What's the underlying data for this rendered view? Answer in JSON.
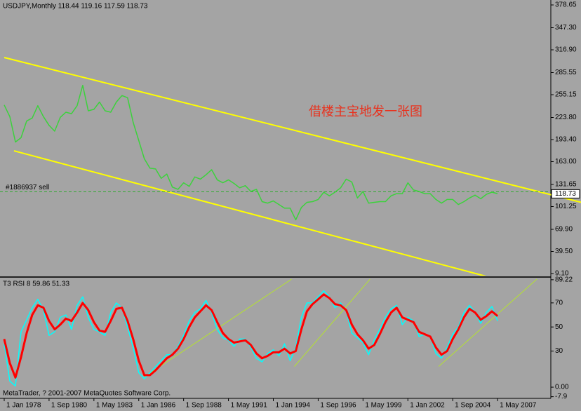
{
  "chart_data": [
    {
      "type": "line",
      "title": "USDJPY,Monthly  118.44 119.16 117.59 118.73",
      "annotation": "借楼主宝地发一张图",
      "order_label": "#1886937 sell",
      "order_price": 121.5,
      "current_price": 118.73,
      "color": "#3cd23c",
      "xlim": [
        "1977-11",
        "2010-07"
      ],
      "ylim": [
        6.2,
        383.5
      ],
      "yticks": [
        378.65,
        {
          "value": 347.3,
          "label": "347.30"
        },
        {
          "value": 316.9,
          "label": "316.90"
        },
        285.55,
        255.15,
        {
          "value": 223.8,
          "label": "223.80"
        },
        {
          "value": 193.4,
          "label": "193.40"
        },
        {
          "value": 163.0,
          "label": "163.00"
        },
        131.65,
        101.25,
        {
          "value": 69.9,
          "label": "69.90"
        },
        {
          "value": 39.5,
          "label": "39.50"
        },
        {
          "value": 9.1,
          "label": "9.10"
        }
      ],
      "x": [
        "1978-01",
        "1978-05",
        "1978-09",
        "1979-01",
        "1979-05",
        "1979-09",
        "1980-01",
        "1980-05",
        "1980-09",
        "1981-01",
        "1981-05",
        "1981-09",
        "1982-01",
        "1982-05",
        "1982-09",
        "1983-01",
        "1983-05",
        "1983-09",
        "1984-01",
        "1984-05",
        "1984-09",
        "1985-01",
        "1985-05",
        "1985-09",
        "1986-01",
        "1986-05",
        "1986-09",
        "1987-01",
        "1987-05",
        "1987-09",
        "1988-01",
        "1988-05",
        "1988-09",
        "1989-01",
        "1989-05",
        "1989-09",
        "1990-01",
        "1990-05",
        "1990-09",
        "1991-01",
        "1991-05",
        "1991-09",
        "1992-01",
        "1992-05",
        "1992-09",
        "1993-01",
        "1993-05",
        "1993-09",
        "1994-01",
        "1994-05",
        "1994-09",
        "1995-01",
        "1995-05",
        "1995-09",
        "1996-01",
        "1996-05",
        "1996-09",
        "1997-01",
        "1997-05",
        "1997-09",
        "1998-01",
        "1998-05",
        "1998-09",
        "1999-01",
        "1999-05",
        "1999-09",
        "2000-01",
        "2000-05",
        "2000-09",
        "2001-01",
        "2001-05",
        "2001-09",
        "2002-01",
        "2002-05",
        "2002-09",
        "2003-01",
        "2003-05",
        "2003-09",
        "2004-01",
        "2004-05",
        "2004-09",
        "2005-01",
        "2005-05",
        "2005-09",
        "2006-01",
        "2006-05",
        "2006-09",
        "2007-01",
        "2007-05"
      ],
      "values": [
        241,
        225,
        190,
        196,
        219,
        223,
        240,
        225,
        213,
        205,
        224,
        231,
        229,
        240,
        268,
        233,
        235,
        245,
        233,
        231,
        245,
        254,
        251,
        217,
        192,
        167,
        154,
        153,
        140,
        146,
        128,
        125,
        134,
        129,
        142,
        139,
        145,
        152,
        138,
        134,
        138,
        133,
        127,
        130,
        122,
        125,
        108,
        106,
        109,
        104,
        99,
        99,
        83,
        100,
        107,
        108,
        111,
        121,
        116,
        121,
        127,
        139,
        135,
        113,
        122,
        106,
        107,
        108,
        108,
        116,
        119,
        119,
        134,
        124,
        122,
        119,
        119,
        111,
        106,
        111,
        111,
        104,
        108,
        113,
        117,
        112,
        118,
        121,
        119
      ],
      "trendline_color": "#ffff00",
      "trendline_ray": true,
      "trendlines": [
        {
          "points": [
            [
              "1978-01",
              306.3
            ],
            [
              "2008-08",
              128.7
            ]
          ]
        },
        {
          "points": [
            [
              "1978-08",
              177.9
            ],
            [
              "2006-07",
              6.2
            ]
          ]
        }
      ]
    },
    {
      "type": "line",
      "title": "T3 RSI 8 59.86 51.33",
      "footer": "MetaTrader, ? 2001-2007 MetaQuotes Software Corp.",
      "xlim": [
        "1977-11",
        "2010-07"
      ],
      "ylim": [
        -9.3,
        90.3
      ],
      "yticks": [
        89.22,
        70,
        50,
        30,
        {
          "value": 0,
          "label": "0.00"
        },
        -7.9
      ],
      "xticks": [
        {
          "value": "1978-01",
          "label": "1 Jan 1978"
        },
        {
          "value": "1980-09",
          "label": "1 Sep 1980"
        },
        {
          "value": "1983-05",
          "label": "1 May 1983"
        },
        {
          "value": "1986-01",
          "label": "1 Jan 1986"
        },
        {
          "value": "1988-09",
          "label": "1 Sep 1988"
        },
        {
          "value": "1991-05",
          "label": "1 May 1991"
        },
        {
          "value": "1994-01",
          "label": "1 Jan 1994"
        },
        {
          "value": "1996-09",
          "label": "1 Sep 1996"
        },
        {
          "value": "1999-05",
          "label": "1 May 1999"
        },
        {
          "value": "2002-01",
          "label": "1 Jan 2002"
        },
        {
          "value": "2004-09",
          "label": "1 Sep 2004"
        },
        {
          "value": "2007-05",
          "label": "1 May 2007"
        }
      ],
      "x": [
        "1978-01",
        "1978-05",
        "1978-09",
        "1979-01",
        "1979-05",
        "1979-09",
        "1980-01",
        "1980-05",
        "1980-09",
        "1981-01",
        "1981-05",
        "1981-09",
        "1982-01",
        "1982-05",
        "1982-09",
        "1983-01",
        "1983-05",
        "1983-09",
        "1984-01",
        "1984-05",
        "1984-09",
        "1985-01",
        "1985-05",
        "1985-09",
        "1986-01",
        "1986-05",
        "1986-09",
        "1987-01",
        "1987-05",
        "1987-09",
        "1988-01",
        "1988-05",
        "1988-09",
        "1989-01",
        "1989-05",
        "1989-09",
        "1990-01",
        "1990-05",
        "1990-09",
        "1991-01",
        "1991-05",
        "1991-09",
        "1992-01",
        "1992-05",
        "1992-09",
        "1993-01",
        "1993-05",
        "1993-09",
        "1994-01",
        "1994-05",
        "1994-09",
        "1995-01",
        "1995-05",
        "1995-09",
        "1996-01",
        "1996-05",
        "1996-09",
        "1997-01",
        "1997-05",
        "1997-09",
        "1998-01",
        "1998-05",
        "1998-09",
        "1999-01",
        "1999-05",
        "1999-09",
        "2000-01",
        "2000-05",
        "2000-09",
        "2001-01",
        "2001-05",
        "2001-09",
        "2002-01",
        "2002-05",
        "2002-09",
        "2003-01",
        "2003-05",
        "2003-09",
        "2004-01",
        "2004-05",
        "2004-09",
        "2005-01",
        "2005-05",
        "2005-09",
        "2006-01",
        "2006-05",
        "2006-09",
        "2007-01",
        "2007-05"
      ],
      "series": [
        {
          "color": "#00ffff",
          "width": 1.5,
          "values": [
            36,
            5,
            1,
            46,
            56,
            66,
            73,
            64,
            43,
            46,
            58,
            60,
            48,
            68,
            75,
            58,
            48,
            46,
            43,
            62,
            70,
            66,
            50,
            33,
            12,
            7,
            12,
            17,
            22,
            27,
            27,
            34,
            43,
            55,
            62,
            65,
            72,
            62,
            48,
            41,
            39,
            34,
            40,
            40,
            33,
            24,
            21,
            28,
            31,
            26,
            36,
            22,
            33,
            58,
            70,
            70,
            75,
            80,
            75,
            66,
            70,
            63,
            45,
            41,
            37,
            27,
            39,
            48,
            58,
            65,
            68,
            52,
            58,
            55,
            42,
            44,
            42,
            28,
            24,
            33,
            44,
            50,
            62,
            68,
            62,
            53,
            62,
            67,
            55
          ]
        },
        {
          "color": "#ff0000",
          "width": 3,
          "values": [
            40,
            20,
            8,
            25,
            45,
            60,
            68,
            66,
            55,
            48,
            52,
            57,
            55,
            62,
            70,
            64,
            54,
            47,
            46,
            55,
            65,
            66,
            55,
            40,
            22,
            10,
            10,
            14,
            19,
            24,
            27,
            32,
            40,
            50,
            58,
            63,
            68,
            64,
            54,
            45,
            40,
            37,
            38,
            39,
            35,
            28,
            24,
            26,
            29,
            29,
            32,
            28,
            30,
            48,
            63,
            69,
            73,
            77,
            74,
            69,
            68,
            64,
            52,
            44,
            39,
            32,
            35,
            44,
            54,
            62,
            66,
            58,
            56,
            54,
            46,
            44,
            42,
            33,
            27,
            30,
            40,
            48,
            58,
            65,
            62,
            56,
            59,
            63,
            59
          ]
        }
      ],
      "trendline_color": "#b4e132",
      "trendline_ray": false,
      "trendlines": [
        {
          "points": [
            [
              "1986-05",
              8.6
            ],
            [
              "1995-02",
              89.7
            ]
          ]
        },
        {
          "points": [
            [
              "1995-04",
              17.2
            ],
            [
              "1999-10",
              89.7
            ]
          ]
        },
        {
          "points": [
            [
              "2003-11",
              17.2
            ],
            [
              "2009-09",
              89.7
            ]
          ]
        }
      ]
    }
  ]
}
